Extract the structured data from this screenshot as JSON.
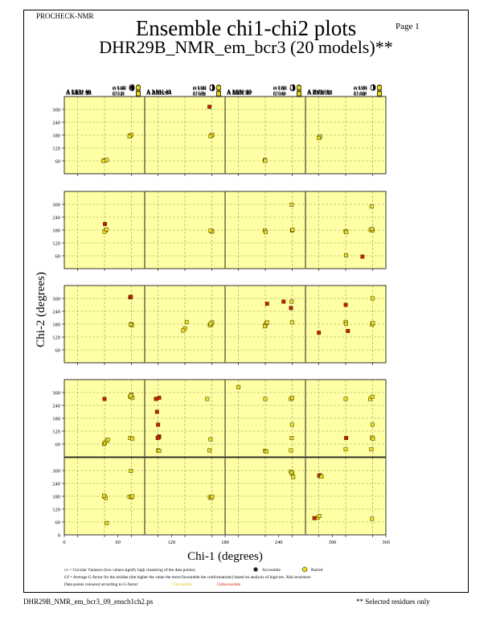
{
  "header": {
    "program": "PROCHECK-NMR",
    "page": "Page  1",
    "title": "Ensemble chi1-chi2 plots",
    "subtitle": "DHR29B_NMR_em_bcr3 (20 models)**"
  },
  "footer": {
    "filename": "DHR29B_NMR_em_bcr3_09_ensch1ch2.ps",
    "selected_note": "** Selected residues only"
  },
  "legend": {
    "line1": "cv = Circular Variance (low values signify high clustering of the data points).",
    "accessible": "Accessible",
    "buried": "Buried",
    "line2": "Gf = Average G-factor for the residue (the higher the value the more favourable the conformations) based on analysis of high-res. Xtal structures",
    "line3": "Data points coloured according to G-factor:",
    "favourable": "Favourable",
    "unfavourable": "Unfavourable"
  },
  "colors": {
    "plot_bg": "#ffffa6",
    "point_fill": "#e8e020",
    "unfav_red": "#cc1a00",
    "grid": "#a0a060",
    "divider": "#606040"
  },
  "chart_data": {
    "type": "scatter",
    "xlabel": "Chi-1 (degrees)",
    "ylabel": "Chi-2 (degrees)",
    "xlim": [
      0,
      360
    ],
    "ylim": [
      0,
      360
    ],
    "xticks": [
      "0",
      "60",
      "120",
      "180",
      "240",
      "300",
      "360"
    ],
    "x_ticks_per_panel": [
      "60",
      "180",
      "300"
    ],
    "yticks": [
      "60",
      "120",
      "180",
      "240",
      "300"
    ],
    "y_axis_zero": "0",
    "panels": [
      {
        "label": "A LEU 11",
        "cv": "cv 0.410",
        "gf": "Gf 0.62",
        "access": "partial",
        "points": [
          [
            180,
            62,
            "f"
          ],
          [
            190,
            64,
            "f"
          ],
          [
            175,
            60,
            "f"
          ],
          [
            295,
            178,
            "f"
          ],
          [
            300,
            182,
            "f"
          ],
          [
            292,
            174,
            "f"
          ]
        ]
      },
      {
        "label": "A LEU 13",
        "cv": "cv 0.044",
        "gf": "Gf 0.56",
        "access": "partial",
        "points": [
          [
            298,
            178,
            "f"
          ],
          [
            302,
            182,
            "f"
          ],
          [
            295,
            175,
            "f"
          ],
          [
            290,
            312,
            "r"
          ]
        ]
      },
      {
        "label": "A LEU 15",
        "cv": "cv 0.001",
        "gf": "Gf 0.41",
        "access": "partial",
        "points": [
          [
            178,
            64,
            "f"
          ],
          [
            180,
            60,
            "f"
          ]
        ]
      },
      {
        "label": "A ILE 16",
        "cv": "cv 0.001",
        "gf": "Gf -0.01",
        "access": "partial",
        "points": [
          [
            62,
            170,
            "f"
          ],
          [
            65,
            174,
            "f"
          ],
          [
            60,
            167,
            "f"
          ]
        ]
      },
      {
        "label": "A MET 25",
        "cv": "cv 0.006",
        "gf": "Gf 0.27",
        "access": "partial",
        "points": [
          [
            185,
            178,
            "f"
          ],
          [
            180,
            172,
            "f"
          ],
          [
            188,
            183,
            "f"
          ],
          [
            182,
            208,
            "r"
          ]
        ]
      },
      {
        "label": "A ILE 26",
        "cv": "cv 0.001",
        "gf": "Gf -0.32",
        "access": "partial",
        "points": [
          [
            298,
            175,
            "f"
          ],
          [
            302,
            173,
            "f"
          ],
          [
            295,
            177,
            "f"
          ]
        ]
      },
      {
        "label": "A MET 27",
        "cv": "cv 0.303",
        "gf": "Gf 0.74",
        "access": "partial",
        "points": [
          [
            178,
            178,
            "f"
          ],
          [
            182,
            170,
            "f"
          ],
          [
            300,
            178,
            "f"
          ],
          [
            302,
            182,
            "f"
          ],
          [
            298,
            298,
            "f"
          ]
        ]
      },
      {
        "label": "A LYS 29",
        "cv": "cv 0.393",
        "gf": "Gf 0.72",
        "access": "buried",
        "points": [
          [
            180,
            175,
            "f"
          ],
          [
            183,
            170,
            "f"
          ],
          [
            182,
            62,
            "f"
          ],
          [
            292,
            180,
            "f"
          ],
          [
            300,
            178,
            "f"
          ],
          [
            298,
            185,
            "f"
          ],
          [
            296,
            290,
            "f"
          ],
          [
            255,
            56,
            "r"
          ]
        ]
      },
      {
        "label": "A LEU 30",
        "cv": "cv 0.116",
        "gf": "Gf 0.46",
        "access": "partial",
        "points": [
          [
            295,
            305,
            "r"
          ],
          [
            298,
            308,
            "r"
          ],
          [
            300,
            180,
            "f"
          ],
          [
            303,
            175,
            "f"
          ],
          [
            297,
            178,
            "f"
          ]
        ]
      },
      {
        "label": "A ARG 34",
        "cv": "cv 0.142",
        "gf": "Gf 0.56",
        "access": "partial",
        "points": [
          [
            180,
            160,
            "f"
          ],
          [
            172,
            150,
            "f"
          ],
          [
            188,
            190,
            "f"
          ],
          [
            298,
            180,
            "f"
          ],
          [
            302,
            188,
            "f"
          ],
          [
            292,
            175,
            "f"
          ],
          [
            295,
            182,
            "f"
          ]
        ]
      },
      {
        "label": "A LYS 36",
        "cv": "cv 0.142",
        "gf": "Gf 0.19",
        "access": "partial",
        "points": [
          [
            180,
            175,
            "f"
          ],
          [
            185,
            185,
            "f"
          ],
          [
            178,
            170,
            "f"
          ],
          [
            188,
            188,
            "f"
          ],
          [
            188,
            275,
            "r"
          ],
          [
            262,
            285,
            "r"
          ],
          [
            298,
            285,
            "f"
          ],
          [
            300,
            188,
            "f"
          ],
          [
            295,
            255,
            "r"
          ]
        ]
      },
      {
        "label": "A GLU 38",
        "cv": "cv 0.277",
        "gf": "Gf 0.44",
        "access": "buried",
        "points": [
          [
            60,
            140,
            "r"
          ],
          [
            180,
            190,
            "f"
          ],
          [
            182,
            182,
            "f"
          ],
          [
            180,
            270,
            "r"
          ],
          [
            190,
            148,
            "r"
          ],
          [
            298,
            178,
            "f"
          ],
          [
            302,
            185,
            "f"
          ],
          [
            300,
            300,
            "f"
          ]
        ]
      },
      {
        "label": "A TYR 40",
        "cv": "cv 0.472",
        "gf": "Gf 0.15",
        "access": "buried",
        "points": [
          [
            178,
            60,
            "f"
          ],
          [
            182,
            65,
            "f"
          ],
          [
            190,
            75,
            "f"
          ],
          [
            195,
            80,
            "f"
          ],
          [
            180,
            270,
            "r"
          ],
          [
            295,
            280,
            "f"
          ],
          [
            300,
            290,
            "f"
          ],
          [
            305,
            275,
            "f"
          ],
          [
            298,
            285,
            "f"
          ],
          [
            295,
            88,
            "f"
          ],
          [
            305,
            85,
            "f"
          ]
        ]
      },
      {
        "label": "A ASN 41",
        "cv": "cv 0.393",
        "gf": "Gf -1.88",
        "access": "partial",
        "points": [
          [
            50,
            270,
            "r"
          ],
          [
            65,
            275,
            "r"
          ],
          [
            55,
            210,
            "r"
          ],
          [
            60,
            150,
            "r"
          ],
          [
            65,
            95,
            "r"
          ],
          [
            62,
            90,
            "r"
          ],
          [
            58,
            88,
            "r"
          ],
          [
            60,
            30,
            "f"
          ],
          [
            65,
            28,
            "f"
          ],
          [
            280,
            270,
            "f"
          ],
          [
            290,
            30,
            "f"
          ],
          [
            295,
            82,
            "f"
          ]
        ]
      },
      {
        "label": "A ASN 45",
        "cv": "cv 0.617",
        "gf": "Gf -0.09",
        "access": "buried",
        "points": [
          [
            60,
            325,
            "f"
          ],
          [
            180,
            270,
            "f"
          ],
          [
            178,
            28,
            "f"
          ],
          [
            185,
            25,
            "f"
          ],
          [
            295,
            270,
            "f"
          ],
          [
            300,
            275,
            "f"
          ],
          [
            298,
            88,
            "f"
          ],
          [
            300,
            150,
            "f"
          ],
          [
            295,
            30,
            "f"
          ]
        ]
      },
      {
        "label": "A ASN 47",
        "cv": "cv 0.461",
        "gf": "Gf 0.02",
        "access": "buried",
        "points": [
          [
            180,
            270,
            "f"
          ],
          [
            182,
            88,
            "r"
          ],
          [
            180,
            35,
            "f"
          ],
          [
            290,
            270,
            "f"
          ],
          [
            300,
            280,
            "f"
          ],
          [
            298,
            90,
            "f"
          ],
          [
            302,
            85,
            "f"
          ],
          [
            300,
            150,
            "f"
          ],
          [
            295,
            35,
            "f"
          ]
        ]
      },
      {
        "label": "A GLU 48",
        "cv": "cv 0.325",
        "gf": "Gf 0.76",
        "access": "buried",
        "points": [
          [
            180,
            178,
            "f"
          ],
          [
            185,
            172,
            "f"
          ],
          [
            178,
            183,
            "f"
          ],
          [
            190,
            55,
            "f"
          ],
          [
            292,
            178,
            "f"
          ],
          [
            300,
            175,
            "f"
          ],
          [
            305,
            180,
            "f"
          ],
          [
            298,
            298,
            "f"
          ]
        ]
      },
      {
        "label": "A LEU 49",
        "cv": "cv 0.002",
        "gf": "Gf 0.78",
        "access": "partial",
        "points": [
          [
            292,
            176,
            "f"
          ],
          [
            298,
            172,
            "f"
          ],
          [
            302,
            178,
            "f"
          ]
        ]
      },
      {
        "label": "A PHE 50",
        "cv": "cv 0.003",
        "gf": "Gf 0.63",
        "access": "partial",
        "points": [
          [
            295,
            295,
            "f"
          ],
          [
            300,
            285,
            "f"
          ],
          [
            305,
            270,
            "f"
          ],
          [
            298,
            290,
            "f"
          ]
        ]
      },
      {
        "label": "A TYR 52",
        "cv": "cv 0.376",
        "gf": "Gf -0.80",
        "access": "partial",
        "points": [
          [
            60,
            275,
            "f"
          ],
          [
            65,
            278,
            "r"
          ],
          [
            72,
            272,
            "f"
          ],
          [
            55,
            80,
            "f"
          ],
          [
            62,
            88,
            "f"
          ],
          [
            40,
            78,
            "r"
          ],
          [
            298,
            75,
            "f"
          ]
        ]
      }
    ]
  }
}
